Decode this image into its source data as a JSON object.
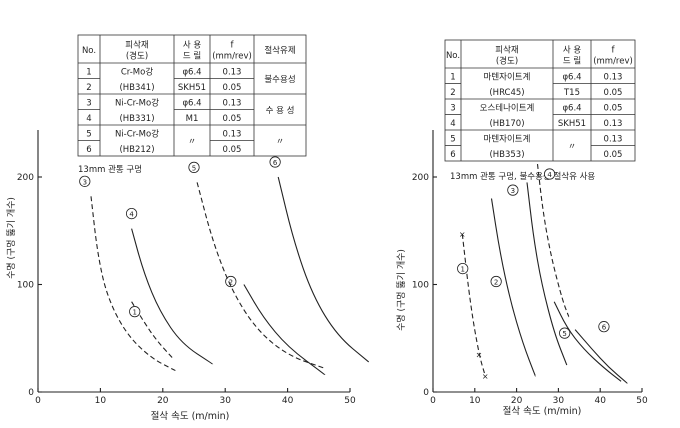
{
  "colors": {
    "ink": "#222222",
    "paper": "#ffffff"
  },
  "chart_data": [
    {
      "type": "line",
      "xlabel": "절삭 속도 (m/min)",
      "ylabel": "수명 (구멍 뚫기 개수)",
      "xlim": [
        0,
        50
      ],
      "ylim": [
        0,
        240
      ],
      "xticks": [
        "0",
        "10",
        "20",
        "30",
        "40",
        "50"
      ],
      "yticks": [
        "0",
        "100",
        "200"
      ],
      "grid": false,
      "note": "13mm 관통 구멍",
      "table": {
        "headers": [
          "No.",
          "피삭재(경도)",
          "사 용 드 릴",
          "f (mm/rev)",
          "절삭유제"
        ],
        "rows": [
          [
            "1",
            "Cr-Mo강",
            "φ6.4",
            "0.13",
            "불수용성"
          ],
          [
            "2",
            "(HB341)",
            "SKH51",
            "0.05",
            ""
          ],
          [
            "3",
            "Ni-Cr-Mo강",
            "φ6.4",
            "0.13",
            "수 용 성"
          ],
          [
            "4",
            "(HB331)",
            "M1",
            "0.05",
            ""
          ],
          [
            "5",
            "Ni-Cr-Mo강",
            "〃",
            "0.13",
            "〃"
          ],
          [
            "6",
            "(HB212)",
            "",
            "0.05",
            ""
          ]
        ]
      },
      "series": [
        {
          "name": "①",
          "style": "dashed",
          "x": [
            15,
            17,
            19,
            21.5
          ],
          "y": [
            84,
            65,
            48,
            32
          ]
        },
        {
          "name": "②",
          "style": "solid",
          "x": [
            33,
            36,
            40,
            46
          ],
          "y": [
            100,
            70,
            42,
            16
          ]
        },
        {
          "name": "③",
          "style": "dashed",
          "x": [
            8.5,
            9.5,
            11,
            14,
            18,
            22
          ],
          "y": [
            182,
            130,
            90,
            55,
            32,
            20
          ]
        },
        {
          "name": "④",
          "style": "solid",
          "x": [
            15,
            17,
            19.5,
            23,
            28
          ],
          "y": [
            152,
            110,
            75,
            45,
            26
          ]
        },
        {
          "name": "⑤",
          "style": "dashed",
          "x": [
            25.5,
            28,
            31,
            35,
            40,
            46
          ],
          "y": [
            195,
            140,
            95,
            58,
            34,
            22
          ]
        },
        {
          "name": "⑥",
          "style": "solid",
          "x": [
            38.5,
            41,
            44,
            48,
            53
          ],
          "y": [
            200,
            140,
            90,
            52,
            28
          ]
        }
      ]
    },
    {
      "type": "line",
      "xlabel": "절삭 속도 (m/min)",
      "ylabel": "수명 (구멍 뚫기 개수)",
      "xlim": [
        0,
        50
      ],
      "ylim": [
        0,
        240
      ],
      "xticks": [
        "0",
        "10",
        "20",
        "30",
        "40",
        "50"
      ],
      "yticks": [
        "0",
        "100",
        "200"
      ],
      "grid": false,
      "note": "13mm 관통 구멍, 불수용성 절삭유 사용",
      "table": {
        "headers": [
          "No.",
          "피삭재(경도)",
          "사 용 드 릴",
          "f (mm/rev)"
        ],
        "rows": [
          [
            "1",
            "마텐자이트계",
            "φ6.4",
            "0.13"
          ],
          [
            "2",
            "(HRC45)",
            "T15",
            "0.05"
          ],
          [
            "3",
            "오스테나이트계",
            "φ6.4",
            "0.05"
          ],
          [
            "4",
            "(HB170)",
            "SKH51",
            "0.13"
          ],
          [
            "5",
            "마텐자이트계",
            "〃",
            "0.13"
          ],
          [
            "6",
            "(HB353)",
            "",
            "0.05"
          ]
        ]
      },
      "series": [
        {
          "name": "①",
          "style": "dashed",
          "x": [
            7,
            9,
            11,
            12.5
          ],
          "y": [
            147,
            80,
            35,
            15
          ]
        },
        {
          "name": "②",
          "style": "solid",
          "x": [
            14,
            16,
            18.5,
            21.5,
            24.5
          ],
          "y": [
            180,
            130,
            85,
            45,
            15
          ]
        },
        {
          "name": "③",
          "style": "solid",
          "x": [
            22.5,
            24,
            26,
            29,
            32
          ],
          "y": [
            195,
            145,
            100,
            55,
            25
          ]
        },
        {
          "name": "④",
          "style": "dashed",
          "x": [
            25,
            26.5,
            28.5,
            31,
            32.5
          ],
          "y": [
            212,
            162,
            122,
            85,
            70
          ]
        },
        {
          "name": "⑤",
          "style": "solid",
          "x": [
            29,
            32,
            36,
            41,
            45
          ],
          "y": [
            84,
            60,
            40,
            22,
            10
          ]
        },
        {
          "name": "⑥",
          "style": "solid",
          "x": [
            34,
            38,
            42,
            46.5
          ],
          "y": [
            58,
            40,
            23,
            8
          ]
        }
      ]
    }
  ]
}
